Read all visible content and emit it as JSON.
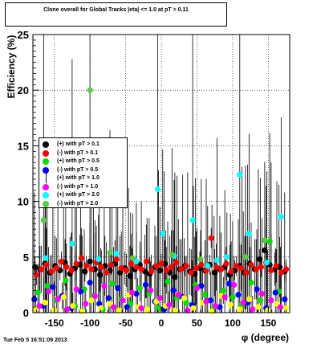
{
  "title": "Clone overall for Global Tracks |eta| <= 1.0 at pT > 0.11",
  "datestamp": "Tue Feb  5 16:51:09 2013",
  "chart_data": {
    "type": "scatter",
    "xlabel": "φ (degree)",
    "ylabel": "Efficiency (%)",
    "xlim": [
      -180,
      180
    ],
    "ylim": [
      0,
      25
    ],
    "xticks": [
      -150,
      -100,
      -50,
      0,
      50,
      100,
      150
    ],
    "yticks": [
      0,
      5,
      10,
      15,
      20,
      25
    ],
    "grid": true,
    "legend_position": "left",
    "series": [
      {
        "name": "(+) with pT > 0.1",
        "color": "#000000",
        "legend_marker": "dot",
        "x": [
          -177,
          -170,
          -163,
          -156,
          -149,
          -142,
          -135,
          -128,
          -121,
          -114,
          -107,
          -100,
          -93,
          -86,
          -79,
          -72,
          -65,
          -58,
          -51,
          -44,
          -37,
          -30,
          -23,
          -16,
          -9,
          -2,
          5,
          12,
          19,
          26,
          33,
          40,
          47,
          54,
          61,
          68,
          75,
          82,
          89,
          96,
          103,
          110,
          117,
          124,
          131,
          138,
          145,
          152,
          159,
          166,
          173
        ],
        "y": [
          4.1,
          3.9,
          4.4,
          3.6,
          4.2,
          3.8,
          4.5,
          3.5,
          4.0,
          4.3,
          3.7,
          4.6,
          3.9,
          3.4,
          4.2,
          3.8,
          4.4,
          3.6,
          4.0,
          3.3,
          3.9,
          4.3,
          3.7,
          3.5,
          4.1,
          3.8,
          4.4,
          3.6,
          3.2,
          3.9,
          4.2,
          3.7,
          3.5,
          4.0,
          3.8,
          4.3,
          3.6,
          3.9,
          4.1,
          3.4,
          3.8,
          4.2,
          3.6,
          4.4,
          3.9,
          4.8,
          5.6,
          4.3,
          3.9,
          4.1,
          3.7
        ]
      },
      {
        "name": "(-) with pT > 0.1",
        "color": "#ff0000",
        "legend_marker": "dot",
        "x": [
          -175,
          -168,
          -161,
          -154,
          -147,
          -140,
          -133,
          -126,
          -119,
          -112,
          -105,
          -98,
          -91,
          -84,
          -77,
          -70,
          -63,
          -56,
          -49,
          -42,
          -35,
          -28,
          -21,
          -14,
          -7,
          0,
          7,
          14,
          21,
          28,
          35,
          42,
          49,
          56,
          63,
          70,
          77,
          84,
          91,
          98,
          105,
          112,
          119,
          126,
          133,
          140,
          147,
          154,
          161,
          168,
          175
        ],
        "y": [
          3.4,
          3.9,
          4.3,
          3.7,
          4.0,
          4.6,
          4.1,
          3.8,
          4.4,
          4.9,
          4.2,
          3.9,
          4.5,
          4.1,
          3.6,
          4.3,
          4.8,
          4.0,
          3.8,
          4.4,
          4.1,
          3.9,
          4.6,
          3.7,
          4.2,
          4.4,
          3.8,
          4.1,
          4.5,
          3.9,
          4.2,
          3.6,
          4.0,
          4.3,
          3.8,
          6.7,
          4.1,
          3.9,
          4.4,
          3.7,
          4.2,
          4.0,
          3.6,
          4.3,
          3.9,
          4.1,
          4.5,
          3.8,
          4.2,
          3.6,
          3.9
        ]
      },
      {
        "name": "(+) with pT > 0.5",
        "color": "#00dd00",
        "legend_marker": "dot",
        "x": [
          -173,
          -160,
          -147,
          -134,
          -121,
          -108,
          -95,
          -82,
          -69,
          -56,
          -43,
          -30,
          -17,
          -4,
          9,
          22,
          35,
          48,
          61,
          74,
          87,
          100,
          113,
          126,
          139,
          152,
          165
        ],
        "y": [
          1.8,
          2.4,
          1.1,
          2.9,
          0.6,
          2.1,
          1.5,
          0.3,
          2.6,
          1.2,
          0.8,
          2.2,
          1.7,
          0.4,
          2.8,
          1.3,
          0.9,
          2.5,
          1.6,
          0.5,
          2.0,
          1.4,
          0.7,
          2.7,
          1.1,
          6.4,
          1.9
        ]
      },
      {
        "name": "(-) with pT > 0.5",
        "color": "#0000ff",
        "legend_marker": "dot",
        "x": [
          -178,
          -165,
          -152,
          -139,
          -126,
          -113,
          -100,
          -87,
          -74,
          -61,
          -48,
          -35,
          -22,
          -9,
          4,
          17,
          30,
          43,
          56,
          69,
          82,
          95,
          108,
          121,
          134,
          147,
          160,
          173
        ],
        "y": [
          1.2,
          0.6,
          2.3,
          1.5,
          0.4,
          1.9,
          2.7,
          0.8,
          1.3,
          2.2,
          0.5,
          1.7,
          2.5,
          1.0,
          0.3,
          2.0,
          1.4,
          0.7,
          2.4,
          1.1,
          0.5,
          2.6,
          1.6,
          0.9,
          2.1,
          0.4,
          1.8,
          1.2
        ]
      },
      {
        "name": "(+) with pT > 1.0",
        "color": "#ffff00",
        "legend_marker": "line",
        "x": [
          -176,
          -163,
          -150,
          -137,
          -124,
          -111,
          -98,
          -85,
          -72,
          -59,
          -46,
          -33,
          -20,
          -7,
          6,
          19,
          32,
          45,
          58,
          71,
          84,
          97,
          110,
          123,
          136,
          149,
          162,
          175
        ],
        "y": [
          0.3,
          0.9,
          0.2,
          1.4,
          0.6,
          0.1,
          1.1,
          0.4,
          0.8,
          0.2,
          1.6,
          0.5,
          0.3,
          1.0,
          0.6,
          0.2,
          1.3,
          0.4,
          0.9,
          0.1,
          1.5,
          0.7,
          0.3,
          1.2,
          0.5,
          0.2,
          0.8,
          0.4
        ]
      },
      {
        "name": "(-) with pT > 1.0",
        "color": "#ff00ff",
        "legend_marker": "dot",
        "x": [
          -171,
          -158,
          -145,
          -132,
          -119,
          -106,
          -93,
          -80,
          -67,
          -54,
          -41,
          -28,
          -15,
          -2,
          11,
          24,
          37,
          50,
          63,
          76,
          89,
          102,
          115,
          128,
          141,
          154,
          167
        ],
        "y": [
          0.6,
          1.9,
          1.2,
          0.3,
          2.1,
          0.8,
          1.5,
          2.4,
          0.5,
          1.1,
          1.8,
          0.4,
          2.0,
          1.3,
          0.7,
          1.6,
          0.2,
          2.2,
          1.0,
          0.6,
          1.4,
          2.5,
          0.9,
          0.3,
          1.7,
          1.1,
          0.5
        ]
      },
      {
        "name": "(+) with pT > 2.0",
        "color": "#00ffff",
        "legend_marker": "dot",
        "x": [
          -162,
          -125,
          -88,
          -63,
          -35,
          -5,
          2,
          18,
          44,
          65,
          78,
          92,
          110,
          123,
          148,
          168
        ],
        "y": [
          4.9,
          6.2,
          4.8,
          5.3,
          4.6,
          11.1,
          7.1,
          5.1,
          8.3,
          4.2,
          4.7,
          5.0,
          12.4,
          7.1,
          4.5,
          8.6
        ]
      },
      {
        "name": "(-) with pT > 2.0",
        "color": "#55cc44",
        "legend_marker": "dot",
        "x": [
          -165,
          -100,
          -72,
          -40,
          15,
          55,
          118,
          145
        ],
        "y": [
          8.3,
          20.0,
          5.4,
          4.9,
          5.2,
          4.8,
          5.0,
          6.5
        ]
      }
    ]
  }
}
